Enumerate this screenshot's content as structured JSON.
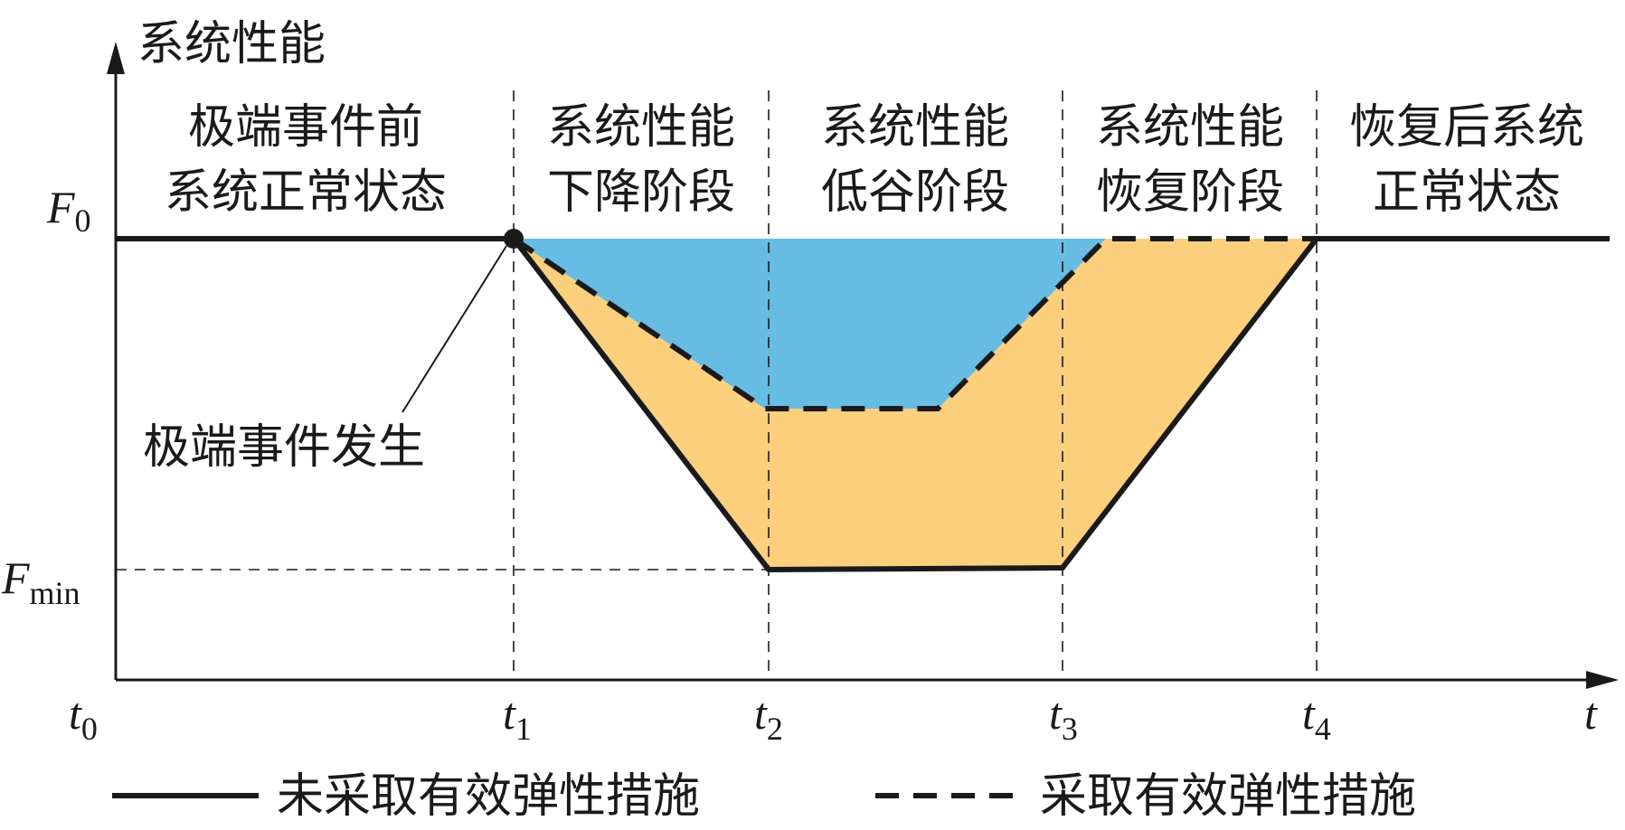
{
  "y_axis_label": "系统性能",
  "y_ticks": {
    "f0": {
      "main": "F",
      "sub": "0"
    },
    "fmin": {
      "main": "F",
      "sub": "min"
    }
  },
  "x_ticks": [
    {
      "main": "t",
      "sub": "0"
    },
    {
      "main": "t",
      "sub": "1"
    },
    {
      "main": "t",
      "sub": "2"
    },
    {
      "main": "t",
      "sub": "3"
    },
    {
      "main": "t",
      "sub": "4"
    },
    {
      "main": "t",
      "sub": ""
    }
  ],
  "phases": [
    {
      "line1": "极端事件前",
      "line2": "系统正常状态"
    },
    {
      "line1": "系统性能",
      "line2": "下降阶段"
    },
    {
      "line1": "系统性能",
      "line2": "低谷阶段"
    },
    {
      "line1": "系统性能",
      "line2": "恢复阶段"
    },
    {
      "line1": "恢复后系统",
      "line2": "正常状态"
    }
  ],
  "event_annotation": "极端事件发生",
  "legend": {
    "solid": "未采取有效弹性措施",
    "dashed": "采取有效弹性措施"
  },
  "colors": {
    "orange_region": "#FCCF7D",
    "blue_region": "#67BCE4",
    "lines": "#1a1a1a"
  }
}
